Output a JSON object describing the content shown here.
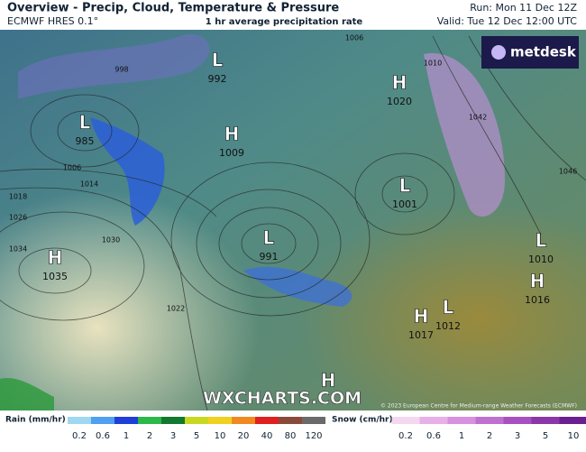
{
  "header": {
    "title": "Overview - Precip, Cloud, Temperature & Pressure",
    "model": "ECMWF HRES 0.1°",
    "product": "1 hr average precipitation rate",
    "run": "Run: Mon 11 Dec 12Z",
    "valid": "Valid: Tue 12 Dec 12:00 UTC"
  },
  "logo": "metdesk",
  "watermark": "WXCHARTS.COM",
  "copyright": "© 2023 European Centre for Medium-range Weather Forecasts (ECMWF)",
  "centers": [
    {
      "symbol": "L",
      "pressure": 992
    },
    {
      "symbol": "L",
      "pressure": 985
    },
    {
      "symbol": "H",
      "pressure": 1009
    },
    {
      "symbol": "H",
      "pressure": 1020
    },
    {
      "symbol": "L",
      "pressure": 1001
    },
    {
      "symbol": "L",
      "pressure": 991
    },
    {
      "symbol": "H",
      "pressure": 1035
    },
    {
      "symbol": "L",
      "pressure": 1010
    },
    {
      "symbol": "H",
      "pressure": 1016
    },
    {
      "symbol": "H",
      "pressure": 1017
    },
    {
      "symbol": "L",
      "pressure": 1012
    },
    {
      "symbol": "H"
    }
  ],
  "isobar_labels": [
    1006,
    1014,
    1018,
    1026,
    1034,
    1030,
    1022,
    1006,
    998,
    1010,
    1042,
    1046
  ],
  "legend": {
    "rain": {
      "title": "Rain (mm/hr)",
      "ticks": [
        0.2,
        0.6,
        1,
        2,
        3,
        5,
        10,
        20,
        40,
        80,
        120
      ]
    },
    "snow": {
      "title": "Snow (cm/hr)",
      "ticks": [
        0.2,
        0.6,
        1,
        2,
        3,
        5,
        10
      ]
    }
  }
}
